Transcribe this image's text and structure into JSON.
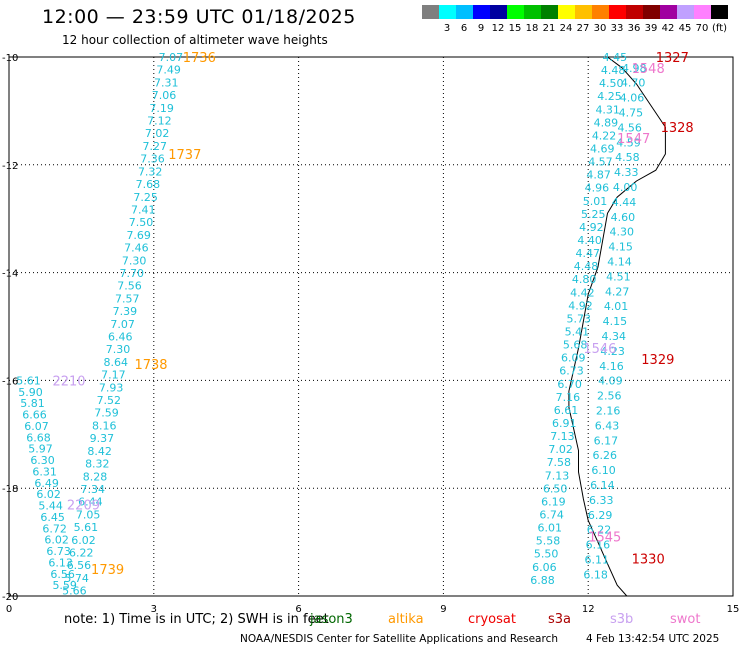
{
  "header": {
    "title": "12:00 — 23:59 UTC 01/18/2025",
    "subtitle": "12 hour collection of altimeter wave heights"
  },
  "color_scale": {
    "unit": "(ft)",
    "swatches": [
      {
        "color": "#7f7f7f",
        "label": ""
      },
      {
        "color": "#00ffff",
        "label": "3"
      },
      {
        "color": "#00bfff",
        "label": "6"
      },
      {
        "color": "#0000ff",
        "label": "9"
      },
      {
        "color": "#0000a0",
        "label": "12"
      },
      {
        "color": "#00ff00",
        "label": "15"
      },
      {
        "color": "#00c000",
        "label": "18"
      },
      {
        "color": "#008000",
        "label": "21"
      },
      {
        "color": "#ffff00",
        "label": "24"
      },
      {
        "color": "#ffc000",
        "label": "27"
      },
      {
        "color": "#ff8000",
        "label": "30"
      },
      {
        "color": "#ff0000",
        "label": "33"
      },
      {
        "color": "#c00000",
        "label": "36"
      },
      {
        "color": "#800000",
        "label": "39"
      },
      {
        "color": "#a000a0",
        "label": "42"
      },
      {
        "color": "#c0a0ff",
        "label": "45"
      },
      {
        "color": "#ff80ff",
        "label": "70"
      },
      {
        "color": "#000000",
        "label": ""
      }
    ]
  },
  "axes": {
    "x_ticks": [
      "0",
      "3",
      "6",
      "9",
      "12",
      "15"
    ],
    "x_range": [
      0,
      15
    ],
    "y_ticks": [
      "-10",
      "-12",
      "-14",
      "-16",
      "-18",
      "-20"
    ],
    "y_range": [
      -10,
      -20
    ]
  },
  "tracks": {
    "altika_a_values": [
      "7.07",
      "7.49",
      "7.31",
      "7.06",
      "7.19",
      "7.12",
      "7.02",
      "7.27",
      "7.36",
      "7.32",
      "7.68",
      "7.25",
      "7.41",
      "7.50",
      "7.69",
      "7.46",
      "7.30",
      "7.70",
      "7.56",
      "7.57",
      "7.39",
      "7.07",
      "6.46",
      "7.30",
      "8.64",
      "7.17",
      "7.93",
      "7.52",
      "7.59",
      "8.16",
      "9.37",
      "8.42",
      "8.32",
      "8.28",
      "7.34",
      "6.44",
      "7.05",
      "5.61",
      "6.02",
      "6.22",
      "6.56",
      "5.74",
      "5.66"
    ],
    "altika_b_values": [
      "5.61",
      "5.90",
      "5.81",
      "6.66",
      "6.07",
      "6.68",
      "5.97",
      "6.30",
      "6.31",
      "6.49",
      "6.02",
      "5.44",
      "6.45",
      "6.72",
      "6.02",
      "6.73",
      "6.13",
      "6.56",
      "5.59"
    ],
    "cryosat_values": [
      "4.45",
      "4.48",
      "4.50",
      "4.25",
      "4.31",
      "4.89",
      "4.22",
      "4.69",
      "4.57",
      "4.87",
      "4.96",
      "5.01",
      "5.25",
      "4.92",
      "4.40",
      "4.47",
      "4.48",
      "4.80",
      "4.42",
      "4.92",
      "5.73",
      "5.41",
      "5.68",
      "6.09",
      "6.73",
      "6.70",
      "7.16",
      "6.61",
      "6.91",
      "7.13",
      "7.02",
      "7.58",
      "7.13",
      "6.50",
      "6.19",
      "6.74",
      "6.01",
      "5.58",
      "5.50",
      "6.06",
      "6.88"
    ],
    "s3b_values": [
      "4.98",
      "4.70",
      "4.06",
      "4.75",
      "4.56",
      "4.59",
      "4.58",
      "4.33",
      "4.00",
      "4.44",
      "4.60",
      "4.30",
      "4.15",
      "4.14",
      "4.51",
      "4.27",
      "4.01",
      "4.15",
      "4.34",
      "4.23",
      "4.16",
      "4.09",
      "2.56",
      "2.16",
      "6.43",
      "6.17",
      "6.26",
      "6.10",
      "6.14",
      "6.33",
      "6.29",
      "6.22",
      "6.16",
      "6.11",
      "6.18"
    ]
  },
  "time_labels": [
    {
      "text": "1736",
      "color": "#ff9900"
    },
    {
      "text": "1737",
      "color": "#ff9900"
    },
    {
      "text": "1738",
      "color": "#ff9900"
    },
    {
      "text": "1739",
      "color": "#ff9900"
    },
    {
      "text": "1327",
      "color": "#cc0000"
    },
    {
      "text": "1328",
      "color": "#cc0000"
    },
    {
      "text": "1329",
      "color": "#cc0000"
    },
    {
      "text": "1330",
      "color": "#cc0000"
    },
    {
      "text": "1548",
      "color": "#ee77cc"
    },
    {
      "text": "1547",
      "color": "#ee77cc"
    },
    {
      "text": "1546",
      "color": "#c8a0f0"
    },
    {
      "text": "2210",
      "color": "#c8a0f0"
    },
    {
      "text": "2209",
      "color": "#c8a0f0"
    },
    {
      "text": "1545",
      "color": "#ee77cc"
    }
  ],
  "footer": {
    "note": "note:  1) Time is in UTC; 2) SWH is in feet",
    "satellites": [
      {
        "name": "jason3",
        "color": "#006600"
      },
      {
        "name": "altika",
        "color": "#ff9900"
      },
      {
        "name": "cryosat",
        "color": "#ee0000"
      },
      {
        "name": "s3a",
        "color": "#aa0000"
      },
      {
        "name": "s3b",
        "color": "#c8a0f0"
      },
      {
        "name": "swot",
        "color": "#ee77cc"
      }
    ],
    "credit": "NOAA/NESDIS Center for Satellite Applications and Research",
    "timestamp": "4 Feb 13:42:54 UTC 2025"
  }
}
